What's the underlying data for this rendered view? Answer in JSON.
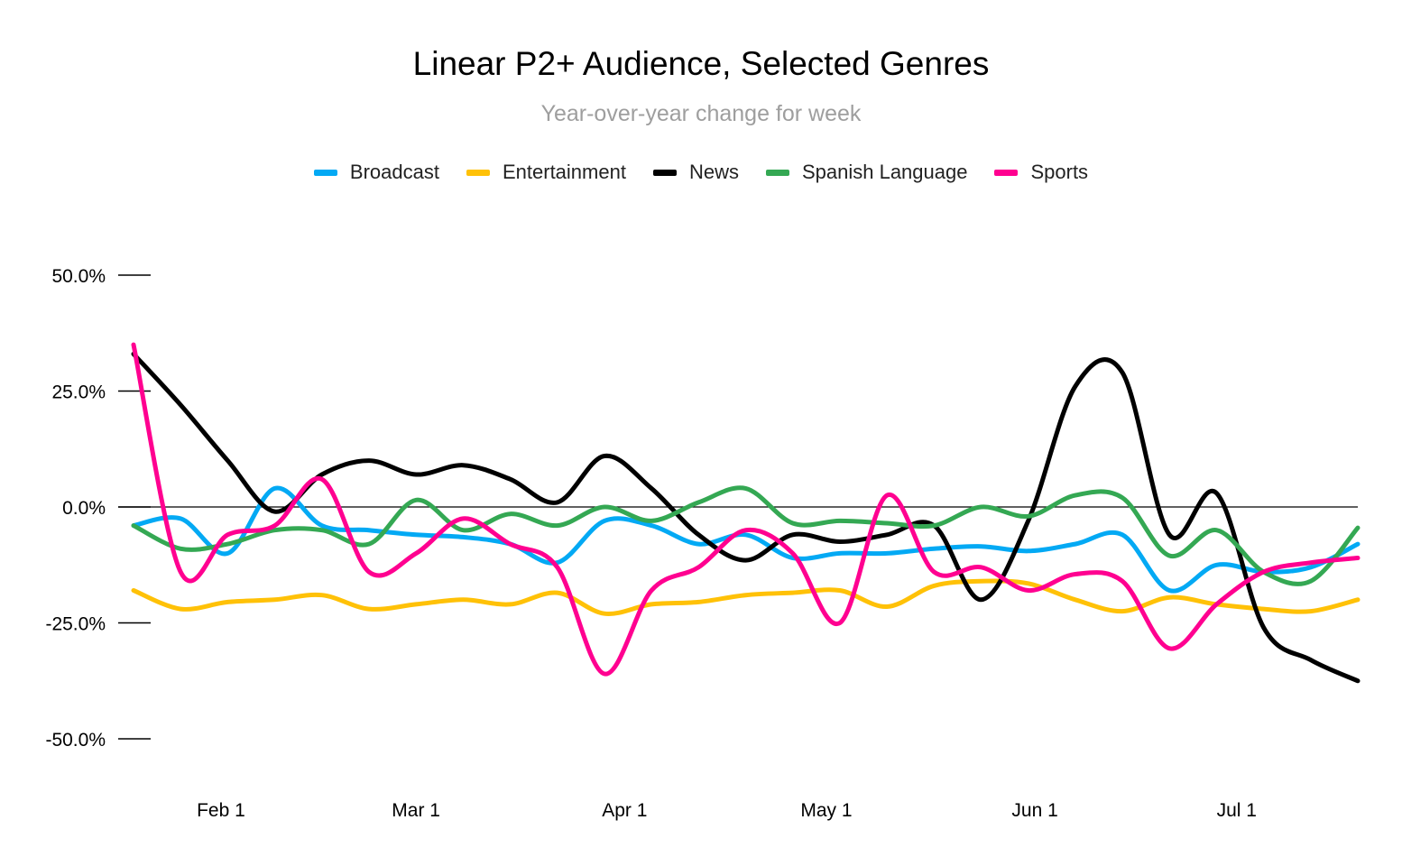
{
  "chart_data": {
    "type": "line",
    "title": "Linear P2+ Audience, Selected Genres",
    "subtitle": "Year-over-year change for week",
    "xlabel": "",
    "ylabel": "",
    "x_start": "2020-01-19",
    "x_end": "2020-07-19",
    "ylim": [
      -50,
      50
    ],
    "y_ticks": [
      50,
      25,
      0,
      -25,
      -50
    ],
    "y_tick_labels": [
      "50.0%",
      "25.0%",
      "0.0%",
      "-25.0%",
      "-50.0%"
    ],
    "x_ticks": [
      {
        "date": "2020-02-01",
        "label": "Feb 1"
      },
      {
        "date": "2020-03-01",
        "label": "Mar 1"
      },
      {
        "date": "2020-04-01",
        "label": "Apr 1"
      },
      {
        "date": "2020-05-01",
        "label": "May 1"
      },
      {
        "date": "2020-06-01",
        "label": "Jun 1"
      },
      {
        "date": "2020-07-01",
        "label": "Jul 1"
      }
    ],
    "x": [
      "2020-01-19",
      "2020-01-26",
      "2020-02-02",
      "2020-02-09",
      "2020-02-16",
      "2020-02-23",
      "2020-03-01",
      "2020-03-08",
      "2020-03-15",
      "2020-03-22",
      "2020-03-29",
      "2020-04-05",
      "2020-04-12",
      "2020-04-19",
      "2020-04-26",
      "2020-05-03",
      "2020-05-10",
      "2020-05-17",
      "2020-05-24",
      "2020-05-31",
      "2020-06-07",
      "2020-06-14",
      "2020-06-21",
      "2020-06-28",
      "2020-07-05",
      "2020-07-12",
      "2020-07-19"
    ],
    "legend_position": "top",
    "grid": false,
    "series": [
      {
        "name": "Broadcast",
        "color": "#03a9f4",
        "values": [
          -4,
          -2.5,
          -10,
          4,
          -4,
          -5,
          -6,
          -6.5,
          -8,
          -12,
          -3,
          -4,
          -8,
          -6,
          -11,
          -10,
          -10,
          -9,
          -8.5,
          -9.5,
          -8,
          -6,
          -18,
          -12.5,
          -14,
          -13,
          -8
        ]
      },
      {
        "name": "Entertainment",
        "color": "#ffc107",
        "values": [
          -18,
          -22,
          -20.5,
          -20,
          -19,
          -22,
          -21,
          -20,
          -21,
          -18.5,
          -23,
          -21,
          -20.5,
          -19,
          -18.5,
          -18,
          -21.5,
          -17,
          -16,
          -16.5,
          -20,
          -22.5,
          -19.5,
          -21,
          -22,
          -22.5,
          -20
        ]
      },
      {
        "name": "News",
        "color": "#000000",
        "values": [
          33,
          22,
          10,
          -1,
          7,
          10,
          7,
          9,
          6,
          1,
          11,
          4,
          -6,
          -11.5,
          -6,
          -7.5,
          -6,
          -4,
          -20,
          -3,
          26,
          29,
          -6,
          3,
          -26,
          -33,
          -37.5
        ]
      },
      {
        "name": "Spanish Language",
        "color": "#34a853",
        "values": [
          -4,
          -9,
          -8,
          -5,
          -5,
          -8,
          1.5,
          -5,
          -1.5,
          -4,
          0,
          -3,
          1,
          4,
          -3.5,
          -3,
          -3.5,
          -4,
          0,
          -2,
          2.5,
          2,
          -10.5,
          -5,
          -14,
          -16,
          -4.5
        ]
      },
      {
        "name": "Sports",
        "color": "#ff0090",
        "values": [
          35,
          -14,
          -6,
          -4,
          6,
          -14,
          -10,
          -2.5,
          -8,
          -13,
          -36,
          -18,
          -13,
          -5,
          -10,
          -25,
          2.5,
          -14,
          -13,
          -18,
          -14.5,
          -16,
          -30.5,
          -21,
          -14,
          -12,
          -11
        ]
      }
    ]
  }
}
